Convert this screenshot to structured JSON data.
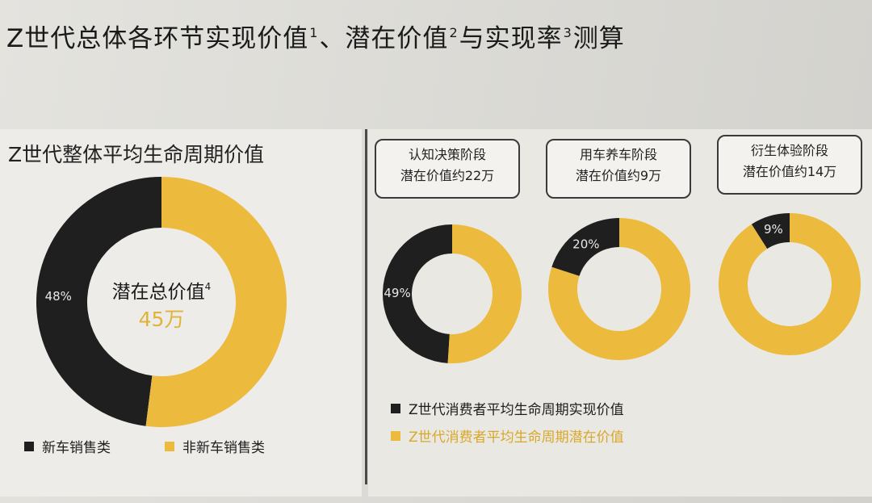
{
  "title": {
    "main": "Z世代总体各环节实现价值",
    "sup1": "1",
    "sep": "、潜在价值",
    "sup2": "2",
    "mid": "与实现率",
    "sup3": "3",
    "end": "测算"
  },
  "colors": {
    "black": "#1f1f1f",
    "gold": "#ecba3c"
  },
  "left": {
    "heading": "Z世代整体平均生命周期价值",
    "center_label": "潜在总价值",
    "center_sup": "4",
    "center_value": "45万",
    "legend": [
      {
        "label": "新车销售类",
        "color": "#1f1f1f"
      },
      {
        "label": "非新车销售类",
        "color": "#ecba3c"
      }
    ]
  },
  "right": {
    "stages": [
      {
        "line1": "认知决策阶段",
        "line2": "潜在价值约22万"
      },
      {
        "line1": "用车养车阶段",
        "line2": "潜在价值约9万"
      },
      {
        "line1": "衍生体验阶段",
        "line2": "潜在价值约14万"
      }
    ],
    "legend": [
      {
        "label": "Z世代消费者平均生命周期实现价值",
        "color": "#1f1f1f"
      },
      {
        "label": "Z世代消费者平均生命周期潜在价值",
        "color": "#ecba3c"
      }
    ]
  },
  "chart_data": [
    {
      "type": "pie",
      "title": "Z世代整体平均生命周期价值",
      "categories": [
        "新车销售类",
        "非新车销售类"
      ],
      "values": [
        48,
        52
      ],
      "labels": [
        "48%",
        ""
      ],
      "colors": [
        "#1f1f1f",
        "#ecba3c"
      ]
    },
    {
      "type": "pie",
      "title": "认知决策阶段",
      "categories": [
        "Z世代消费者平均生命周期实现价值",
        "Z世代消费者平均生命周期潜在价值"
      ],
      "values": [
        49,
        51
      ],
      "labels": [
        "49%",
        ""
      ],
      "colors": [
        "#1f1f1f",
        "#ecba3c"
      ]
    },
    {
      "type": "pie",
      "title": "用车养车阶段",
      "categories": [
        "Z世代消费者平均生命周期实现价值",
        "Z世代消费者平均生命周期潜在价值"
      ],
      "values": [
        20,
        80
      ],
      "labels": [
        "20%",
        ""
      ],
      "colors": [
        "#1f1f1f",
        "#ecba3c"
      ]
    },
    {
      "type": "pie",
      "title": "衍生体验阶段",
      "categories": [
        "Z世代消费者平均生命周期实现价值",
        "Z世代消费者平均生命周期潜在价值"
      ],
      "values": [
        9,
        91
      ],
      "labels": [
        "9%",
        ""
      ],
      "colors": [
        "#1f1f1f",
        "#ecba3c"
      ]
    }
  ]
}
